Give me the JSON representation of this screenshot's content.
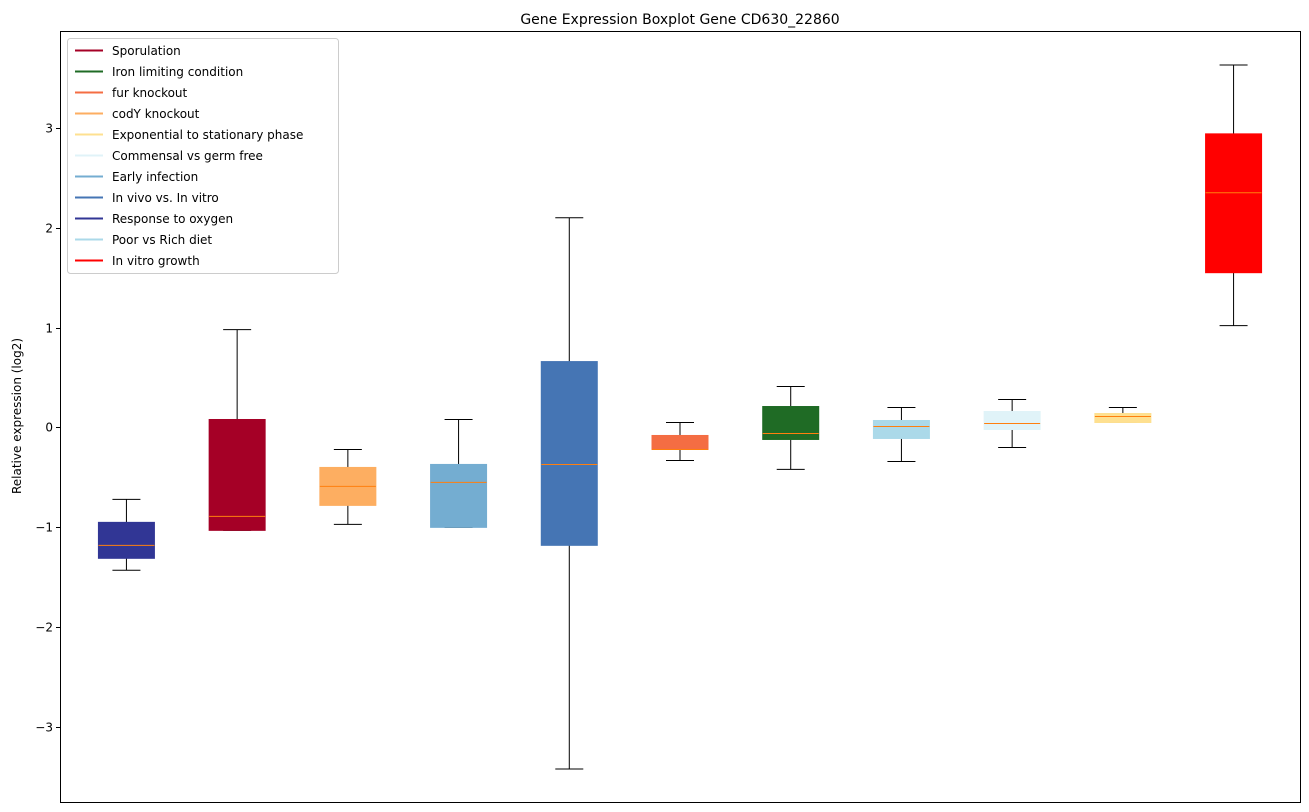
{
  "chart_data": {
    "type": "boxplot",
    "title": "Gene Expression Boxplot Gene CD630_22860",
    "xlabel": "",
    "ylabel": "Relative expression (log2)",
    "ylim": [
      -3.75,
      3.97
    ],
    "yticks": [
      -3,
      -2,
      -1,
      0,
      1,
      2,
      3
    ],
    "ytick_labels": [
      "−3",
      "−2",
      "−1",
      "0",
      "1",
      "2",
      "3"
    ],
    "median_color": "#ff7f0e",
    "whisker_color": "#000000",
    "legend_position": "top-left",
    "legend": [
      {
        "label": "Sporulation",
        "color": "#a50026"
      },
      {
        "label": "Iron limiting condition",
        "color": "#1f6b25"
      },
      {
        "label": "fur knockout",
        "color": "#f46d43"
      },
      {
        "label": "codY knockout",
        "color": "#fdae61"
      },
      {
        "label": "Exponential to stationary phase",
        "color": "#fee090"
      },
      {
        "label": "Commensal vs germ free",
        "color": "#e0f3f8"
      },
      {
        "label": "Early infection",
        "color": "#74add1"
      },
      {
        "label": "In vivo vs. In vitro",
        "color": "#4575b4"
      },
      {
        "label": "Response to oxygen",
        "color": "#313695"
      },
      {
        "label": "Poor vs Rich diet",
        "color": "#abd9e9"
      },
      {
        "label": "In vitro growth",
        "color": "#ff0000"
      }
    ],
    "boxes": [
      {
        "condition": "Response to oxygen",
        "color": "#313695",
        "whislo": -1.43,
        "q1": -1.31,
        "median": -1.18,
        "q3": -0.95,
        "whishi": -0.72
      },
      {
        "condition": "Sporulation",
        "color": "#a50026",
        "whislo": -1.03,
        "q1": -1.03,
        "median": -0.89,
        "q3": 0.08,
        "whishi": 0.98
      },
      {
        "condition": "codY knockout",
        "color": "#fdae61",
        "whislo": -0.97,
        "q1": -0.78,
        "median": -0.59,
        "q3": -0.4,
        "whishi": -0.22
      },
      {
        "condition": "Early infection",
        "color": "#74add1",
        "whislo": -1.0,
        "q1": -1.0,
        "median": -0.55,
        "q3": -0.37,
        "whishi": 0.08
      },
      {
        "condition": "In vivo vs. In vitro",
        "color": "#4575b4",
        "whislo": -3.42,
        "q1": -1.18,
        "median": -0.37,
        "q3": 0.66,
        "whishi": 2.1
      },
      {
        "condition": "fur knockout",
        "color": "#f46d43",
        "whislo": -0.33,
        "q1": -0.22,
        "median": -0.22,
        "q3": -0.08,
        "whishi": 0.05
      },
      {
        "condition": "Iron limiting condition",
        "color": "#1f6b25",
        "whislo": -0.42,
        "q1": -0.12,
        "median": -0.06,
        "q3": 0.21,
        "whishi": 0.41
      },
      {
        "condition": "Poor vs Rich diet",
        "color": "#abd9e9",
        "whislo": -0.34,
        "q1": -0.11,
        "median": 0.01,
        "q3": 0.07,
        "whishi": 0.2
      },
      {
        "condition": "Commensal vs germ free",
        "color": "#e0f3f8",
        "whislo": -0.2,
        "q1": -0.02,
        "median": 0.04,
        "q3": 0.16,
        "whishi": 0.28
      },
      {
        "condition": "Exponential to stationary phase",
        "color": "#fee090",
        "whislo": 0.05,
        "q1": 0.05,
        "median": 0.11,
        "q3": 0.14,
        "whishi": 0.2
      },
      {
        "condition": "In vitro growth",
        "color": "#ff0000",
        "whislo": 1.02,
        "q1": 1.55,
        "median": 2.35,
        "q3": 2.94,
        "whishi": 3.63
      }
    ]
  }
}
